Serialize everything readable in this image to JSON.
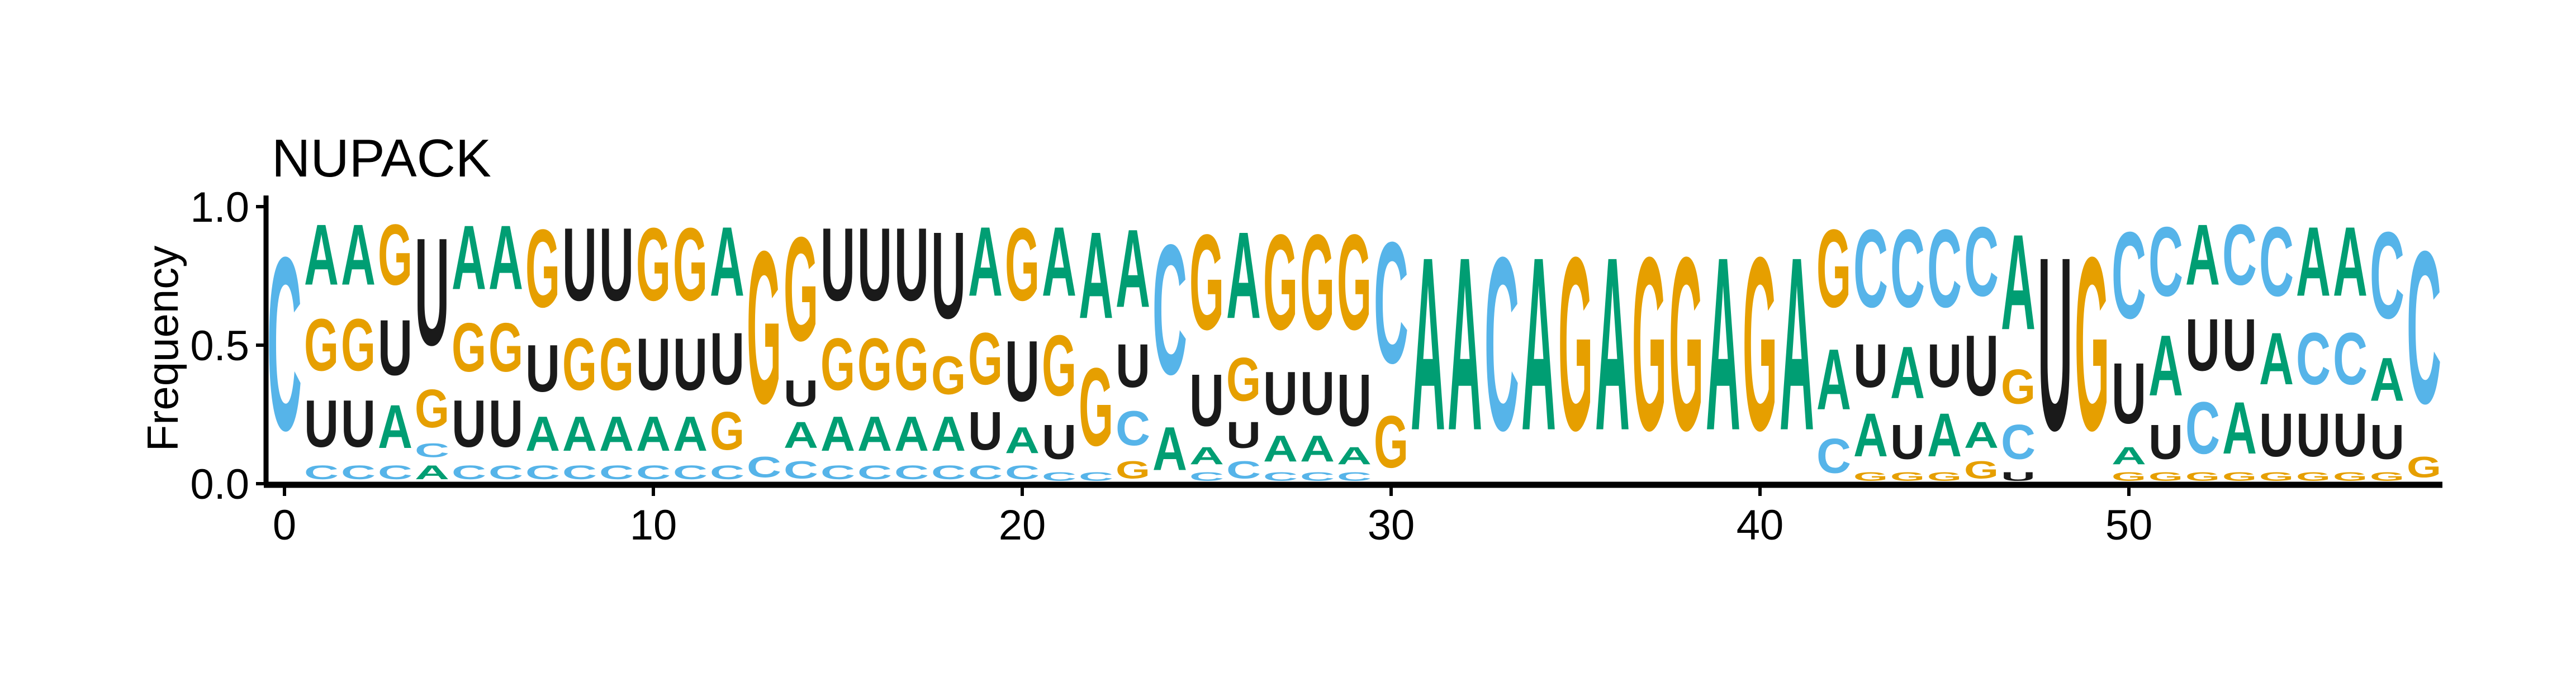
{
  "chart_data": {
    "type": "sequence-logo",
    "title": "NUPACK",
    "xlabel": "",
    "ylabel": "Frequency",
    "xlim": [
      -0.5,
      58.5
    ],
    "ylim": [
      0,
      1
    ],
    "x_ticks": [
      "0",
      "10",
      "20",
      "30",
      "40",
      "50"
    ],
    "y_ticks": [
      "0.0",
      "0.5",
      "1.0"
    ],
    "grid": false,
    "legend": "none",
    "alphabet": [
      "A",
      "C",
      "G",
      "U"
    ],
    "colors": {
      "A": "#009E73",
      "C": "#56B4E9",
      "G": "#E69F00",
      "U": "#1a1a1a"
    },
    "positions": [
      {
        "x": 0,
        "A": 0.0,
        "C": 1.0,
        "G": 0.0,
        "U": 0.0
      },
      {
        "x": 1,
        "A": 0.35,
        "C": 0.08,
        "G": 0.3,
        "U": 0.27
      },
      {
        "x": 2,
        "A": 0.35,
        "C": 0.08,
        "G": 0.3,
        "U": 0.27
      },
      {
        "x": 3,
        "A": 0.25,
        "C": 0.08,
        "G": 0.35,
        "U": 0.32
      },
      {
        "x": 4,
        "A": 0.08,
        "C": 0.08,
        "G": 0.22,
        "U": 0.62
      },
      {
        "x": 5,
        "A": 0.37,
        "C": 0.08,
        "G": 0.28,
        "U": 0.27
      },
      {
        "x": 6,
        "A": 0.37,
        "C": 0.08,
        "G": 0.28,
        "U": 0.27
      },
      {
        "x": 7,
        "A": 0.2,
        "C": 0.08,
        "G": 0.45,
        "U": 0.27
      },
      {
        "x": 8,
        "A": 0.2,
        "C": 0.08,
        "G": 0.3,
        "U": 0.42
      },
      {
        "x": 9,
        "A": 0.2,
        "C": 0.08,
        "G": 0.3,
        "U": 0.42
      },
      {
        "x": 10,
        "A": 0.2,
        "C": 0.08,
        "G": 0.42,
        "U": 0.3
      },
      {
        "x": 11,
        "A": 0.2,
        "C": 0.08,
        "G": 0.42,
        "U": 0.3
      },
      {
        "x": 12,
        "A": 0.4,
        "C": 0.08,
        "G": 0.22,
        "U": 0.3
      },
      {
        "x": 13,
        "A": 0.0,
        "C": 0.12,
        "G": 0.88,
        "U": 0.0
      },
      {
        "x": 14,
        "A": 0.15,
        "C": 0.1,
        "G": 0.6,
        "U": 0.15
      },
      {
        "x": 15,
        "A": 0.2,
        "C": 0.08,
        "G": 0.3,
        "U": 0.42
      },
      {
        "x": 16,
        "A": 0.2,
        "C": 0.08,
        "G": 0.3,
        "U": 0.42
      },
      {
        "x": 17,
        "A": 0.2,
        "C": 0.08,
        "G": 0.3,
        "U": 0.42
      },
      {
        "x": 18,
        "A": 0.2,
        "C": 0.08,
        "G": 0.22,
        "U": 0.5
      },
      {
        "x": 19,
        "A": 0.4,
        "C": 0.08,
        "G": 0.3,
        "U": 0.22
      },
      {
        "x": 20,
        "A": 0.15,
        "C": 0.08,
        "G": 0.42,
        "U": 0.35
      },
      {
        "x": 21,
        "A": 0.4,
        "C": 0.05,
        "G": 0.35,
        "U": 0.2
      },
      {
        "x": 22,
        "A": 0.5,
        "C": 0.05,
        "G": 0.45,
        "U": 0.0
      },
      {
        "x": 23,
        "A": 0.45,
        "C": 0.2,
        "G": 0.1,
        "U": 0.25
      },
      {
        "x": 24,
        "A": 0.25,
        "C": 0.75,
        "G": 0.0,
        "U": 0.0
      },
      {
        "x": 25,
        "A": 0.1,
        "C": 0.05,
        "G": 0.55,
        "U": 0.3
      },
      {
        "x": 26,
        "A": 0.5,
        "C": 0.1,
        "G": 0.25,
        "U": 0.15
      },
      {
        "x": 27,
        "A": 0.15,
        "C": 0.05,
        "G": 0.55,
        "U": 0.25
      },
      {
        "x": 28,
        "A": 0.15,
        "C": 0.05,
        "G": 0.55,
        "U": 0.25
      },
      {
        "x": 29,
        "A": 0.1,
        "C": 0.05,
        "G": 0.55,
        "U": 0.3
      },
      {
        "x": 30,
        "A": 0.0,
        "C": 0.7,
        "G": 0.3,
        "U": 0.0
      },
      {
        "x": 31,
        "A": 1.0,
        "C": 0.0,
        "G": 0.0,
        "U": 0.0
      },
      {
        "x": 32,
        "A": 1.0,
        "C": 0.0,
        "G": 0.0,
        "U": 0.0
      },
      {
        "x": 33,
        "A": 0.0,
        "C": 1.0,
        "G": 0.0,
        "U": 0.0
      },
      {
        "x": 34,
        "A": 1.0,
        "C": 0.0,
        "G": 0.0,
        "U": 0.0
      },
      {
        "x": 35,
        "A": 0.0,
        "C": 0.0,
        "G": 1.0,
        "U": 0.0
      },
      {
        "x": 36,
        "A": 1.0,
        "C": 0.0,
        "G": 0.0,
        "U": 0.0
      },
      {
        "x": 37,
        "A": 0.0,
        "C": 0.0,
        "G": 1.0,
        "U": 0.0
      },
      {
        "x": 38,
        "A": 0.0,
        "C": 0.0,
        "G": 1.0,
        "U": 0.0
      },
      {
        "x": 39,
        "A": 1.0,
        "C": 0.0,
        "G": 0.0,
        "U": 0.0
      },
      {
        "x": 40,
        "A": 0.0,
        "C": 0.0,
        "G": 1.0,
        "U": 0.0
      },
      {
        "x": 41,
        "A": 1.0,
        "C": 0.0,
        "G": 0.0,
        "U": 0.0
      },
      {
        "x": 42,
        "A": 0.35,
        "C": 0.2,
        "G": 0.45,
        "U": 0.0
      },
      {
        "x": 43,
        "A": 0.25,
        "C": 0.45,
        "G": 0.05,
        "U": 0.25
      },
      {
        "x": 44,
        "A": 0.3,
        "C": 0.45,
        "G": 0.05,
        "U": 0.2
      },
      {
        "x": 45,
        "A": 0.25,
        "C": 0.45,
        "G": 0.05,
        "U": 0.25
      },
      {
        "x": 46,
        "A": 0.15,
        "C": 0.4,
        "G": 0.1,
        "U": 0.35
      },
      {
        "x": 47,
        "A": 0.55,
        "C": 0.2,
        "G": 0.2,
        "U": 0.05
      },
      {
        "x": 48,
        "A": 0.0,
        "C": 0.0,
        "G": 0.0,
        "U": 1.0
      },
      {
        "x": 49,
        "A": 0.0,
        "C": 0.0,
        "G": 1.0,
        "U": 0.0
      },
      {
        "x": 50,
        "A": 0.1,
        "C": 0.5,
        "G": 0.05,
        "U": 0.35
      },
      {
        "x": 51,
        "A": 0.35,
        "C": 0.4,
        "G": 0.05,
        "U": 0.2
      },
      {
        "x": 52,
        "A": 0.35,
        "C": 0.3,
        "G": 0.05,
        "U": 0.3
      },
      {
        "x": 53,
        "A": 0.3,
        "C": 0.35,
        "G": 0.05,
        "U": 0.3
      },
      {
        "x": 54,
        "A": 0.3,
        "C": 0.4,
        "G": 0.05,
        "U": 0.25
      },
      {
        "x": 55,
        "A": 0.4,
        "C": 0.3,
        "G": 0.05,
        "U": 0.25
      },
      {
        "x": 56,
        "A": 0.4,
        "C": 0.3,
        "G": 0.05,
        "U": 0.25
      },
      {
        "x": 57,
        "A": 0.25,
        "C": 0.5,
        "G": 0.05,
        "U": 0.2
      },
      {
        "x": 58,
        "A": 0.0,
        "C": 0.88,
        "G": 0.12,
        "U": 0.0
      }
    ]
  }
}
